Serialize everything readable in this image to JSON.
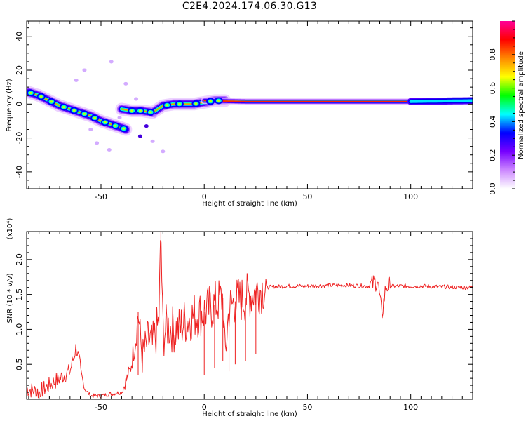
{
  "title": "C2E4.2024.174.06.30.G13",
  "chart_data": [
    {
      "type": "heatmap",
      "xlabel": "Height of straight line (km)",
      "ylabel": "Frequency (Hz)",
      "xlim": [
        -86,
        130
      ],
      "ylim": [
        -50,
        49
      ],
      "x_ticks": [
        -50,
        0,
        50,
        100
      ],
      "x_tick_labels": [
        "-50",
        "0",
        "50",
        "100"
      ],
      "y_ticks": [
        -40,
        -20,
        0,
        20,
        40
      ],
      "y_tick_labels": [
        "-40",
        "-20",
        "0",
        "20",
        "40"
      ],
      "colorbar": {
        "label": "Normalized spectral amplitude",
        "range": [
          0,
          1
        ],
        "ticks": [
          0.0,
          0.2,
          0.4,
          0.6,
          0.8
        ],
        "tick_labels": [
          "0.0",
          "0.2",
          "0.4",
          "0.6",
          "0.8"
        ],
        "colormap": [
          "#ffffff",
          "#cc88ff",
          "#7700ff",
          "#0000ff",
          "#00ffff",
          "#00ff00",
          "#ffff00",
          "#ff8800",
          "#ff0000",
          "#ff0099"
        ]
      },
      "ridges": [
        {
          "name_hint": "sloping",
          "x": [
            -85,
            -80,
            -75,
            -70,
            -65,
            -60,
            -55,
            -50,
            -45,
            -40,
            -38
          ],
          "y": [
            7,
            5,
            2,
            -1,
            -3,
            -5,
            -7,
            -10,
            -12,
            -14,
            -15
          ]
        },
        {
          "name_hint": "second",
          "x": [
            -40,
            -35,
            -30,
            -25,
            -20,
            -15,
            -10,
            -5,
            0,
            5,
            10
          ],
          "y": [
            -3,
            -4,
            -4,
            -5,
            -1,
            0,
            0,
            0,
            1,
            2,
            2
          ]
        },
        {
          "name_hint": "flat",
          "x": [
            0,
            20,
            40,
            60,
            80,
            100,
            120,
            130
          ],
          "y": [
            2,
            1.5,
            1.5,
            1.5,
            1.5,
            1.5,
            1.8,
            2
          ]
        }
      ]
    },
    {
      "type": "line",
      "xlabel": "Height of straight line (km)",
      "ylabel": "SNR (10 * v/v)",
      "y_multiplier": "(x10⁴)",
      "xlim": [
        -86,
        130
      ],
      "ylim": [
        0,
        2.4
      ],
      "x_ticks": [
        -50,
        0,
        50,
        100
      ],
      "x_tick_labels": [
        "-50",
        "0",
        "50",
        "100"
      ],
      "y_ticks": [
        0.5,
        1.0,
        1.5,
        2.0
      ],
      "y_tick_labels": [
        "0.5",
        "1.0",
        "1.5",
        "2.0"
      ],
      "series_color": "#ee2222",
      "series": [
        {
          "x": [
            -86,
            -80,
            -75,
            -70,
            -65,
            -62,
            -58,
            -55,
            -50,
            -45,
            -40,
            -36,
            -33,
            -32,
            -30,
            -27,
            -25,
            -22,
            -21,
            -20,
            -18,
            -15,
            -12,
            -10,
            -5,
            0,
            5,
            9,
            10,
            12,
            15,
            20,
            25,
            30,
            40,
            50,
            60,
            70,
            80,
            84,
            86,
            88,
            95,
            105,
            115,
            125,
            130
          ],
          "y": [
            0.15,
            0.1,
            0.2,
            0.3,
            0.4,
            0.75,
            0.15,
            0.05,
            0.05,
            0.08,
            0.1,
            0.4,
            0.9,
            1.25,
            0.6,
            0.85,
            0.75,
            1.1,
            2.4,
            0.9,
            1.05,
            1.0,
            1.0,
            1.1,
            1.2,
            1.25,
            1.35,
            1.45,
            0.6,
            1.3,
            1.4,
            1.45,
            1.55,
            1.6,
            1.62,
            1.62,
            1.63,
            1.63,
            1.62,
            1.7,
            1.2,
            1.62,
            1.62,
            1.62,
            1.61,
            1.6,
            1.6
          ]
        }
      ]
    }
  ]
}
